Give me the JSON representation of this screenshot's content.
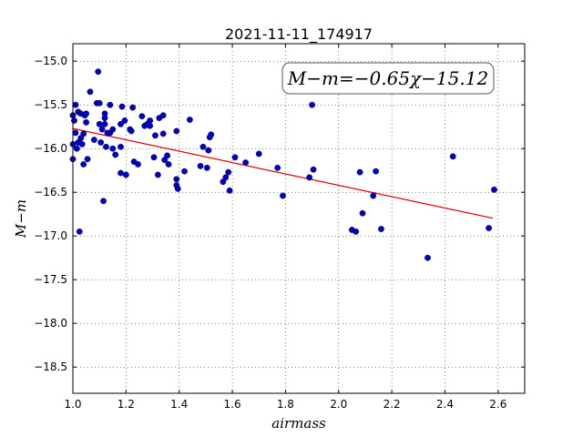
{
  "chart_data": {
    "type": "scatter",
    "title": "2021-11-11_174917",
    "xlabel": "airmass",
    "ylabel": "M−m",
    "xlim": [
      1.0,
      2.7
    ],
    "ylim": [
      -18.8,
      -14.8
    ],
    "y_inverted": true,
    "x_ticks": [
      "1.0",
      "1.2",
      "1.4",
      "1.6",
      "1.8",
      "2.0",
      "2.2",
      "2.4",
      "2.6"
    ],
    "y_ticks": [
      "−15.0",
      "−15.5",
      "−16.0",
      "−16.5",
      "−17.0",
      "−17.5",
      "−18.0",
      "−18.5"
    ],
    "grid": true,
    "annotation": "M−m=−0.65χ−15.12",
    "marker_color": "#0000cc",
    "fit_line_color": "#dd0000",
    "fit": {
      "slope": -0.65,
      "intercept": -15.12,
      "x_range": [
        1.0,
        2.58
      ]
    },
    "points": [
      [
        1.0,
        -16.12
      ],
      [
        1.0,
        -15.62
      ],
      [
        1.0,
        -15.95
      ],
      [
        1.005,
        -15.68
      ],
      [
        1.01,
        -15.5
      ],
      [
        1.01,
        -15.82
      ],
      [
        1.015,
        -16.0
      ],
      [
        1.02,
        -15.58
      ],
      [
        1.02,
        -15.93
      ],
      [
        1.025,
        -16.95
      ],
      [
        1.03,
        -15.6
      ],
      [
        1.03,
        -15.88
      ],
      [
        1.035,
        -15.95
      ],
      [
        1.04,
        -16.18
      ],
      [
        1.04,
        -15.83
      ],
      [
        1.045,
        -15.62
      ],
      [
        1.05,
        -15.6
      ],
      [
        1.05,
        -15.7
      ],
      [
        1.055,
        -16.12
      ],
      [
        1.065,
        -15.35
      ],
      [
        1.08,
        -15.9
      ],
      [
        1.09,
        -15.48
      ],
      [
        1.095,
        -15.12
      ],
      [
        1.1,
        -15.48
      ],
      [
        1.1,
        -15.72
      ],
      [
        1.105,
        -15.93
      ],
      [
        1.11,
        -15.78
      ],
      [
        1.115,
        -16.6
      ],
      [
        1.12,
        -15.65
      ],
      [
        1.12,
        -15.72
      ],
      [
        1.12,
        -15.6
      ],
      [
        1.125,
        -15.98
      ],
      [
        1.13,
        -15.82
      ],
      [
        1.14,
        -15.5
      ],
      [
        1.14,
        -15.82
      ],
      [
        1.15,
        -15.78
      ],
      [
        1.15,
        -16.0
      ],
      [
        1.16,
        -16.07
      ],
      [
        1.18,
        -15.98
      ],
      [
        1.18,
        -15.72
      ],
      [
        1.18,
        -16.28
      ],
      [
        1.185,
        -15.52
      ],
      [
        1.195,
        -15.68
      ],
      [
        1.2,
        -16.3
      ],
      [
        1.215,
        -15.78
      ],
      [
        1.22,
        -15.8
      ],
      [
        1.225,
        -15.53
      ],
      [
        1.23,
        -16.15
      ],
      [
        1.245,
        -16.18
      ],
      [
        1.26,
        -15.63
      ],
      [
        1.27,
        -15.74
      ],
      [
        1.28,
        -15.72
      ],
      [
        1.29,
        -15.68
      ],
      [
        1.29,
        -15.74
      ],
      [
        1.305,
        -16.1
      ],
      [
        1.31,
        -15.85
      ],
      [
        1.32,
        -16.3
      ],
      [
        1.325,
        -15.65
      ],
      [
        1.34,
        -15.62
      ],
      [
        1.34,
        -15.83
      ],
      [
        1.345,
        -16.13
      ],
      [
        1.355,
        -16.08
      ],
      [
        1.36,
        -16.18
      ],
      [
        1.39,
        -15.8
      ],
      [
        1.39,
        -16.35
      ],
      [
        1.39,
        -16.42
      ],
      [
        1.395,
        -16.46
      ],
      [
        1.42,
        -16.26
      ],
      [
        1.44,
        -15.67
      ],
      [
        1.48,
        -16.2
      ],
      [
        1.49,
        -15.98
      ],
      [
        1.505,
        -16.22
      ],
      [
        1.51,
        -16.02
      ],
      [
        1.515,
        -15.87
      ],
      [
        1.52,
        -15.84
      ],
      [
        1.565,
        -16.38
      ],
      [
        1.575,
        -16.33
      ],
      [
        1.585,
        -16.27
      ],
      [
        1.59,
        -16.48
      ],
      [
        1.61,
        -16.1
      ],
      [
        1.65,
        -16.16
      ],
      [
        1.7,
        -16.06
      ],
      [
        1.77,
        -16.22
      ],
      [
        1.79,
        -16.54
      ],
      [
        1.89,
        -16.33
      ],
      [
        1.9,
        -15.5
      ],
      [
        1.905,
        -16.24
      ],
      [
        2.05,
        -16.93
      ],
      [
        2.065,
        -16.95
      ],
      [
        2.08,
        -16.27
      ],
      [
        2.09,
        -16.74
      ],
      [
        2.13,
        -16.54
      ],
      [
        2.14,
        -16.26
      ],
      [
        2.16,
        -16.92
      ],
      [
        2.335,
        -17.25
      ],
      [
        2.43,
        -16.09
      ],
      [
        2.565,
        -16.91
      ],
      [
        2.585,
        -16.47
      ]
    ]
  }
}
